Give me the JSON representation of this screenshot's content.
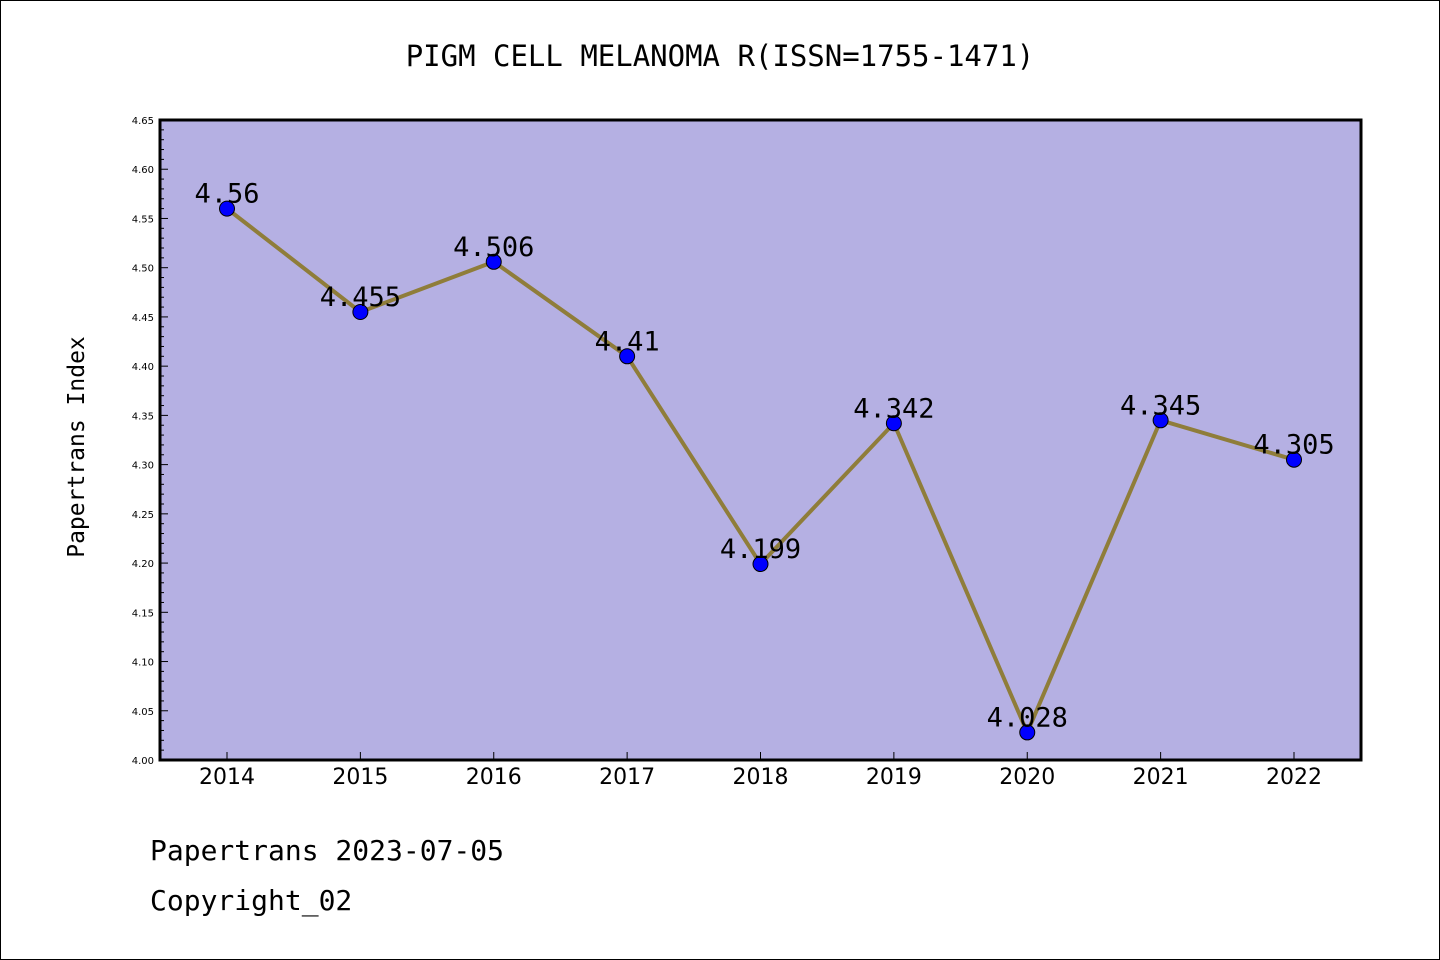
{
  "chart_data": {
    "type": "line",
    "title": "PIGM CELL MELANOMA R(ISSN=1755-1471)",
    "ylabel": "Papertrans Index",
    "xlabel": "",
    "categories": [
      "2014",
      "2015",
      "2016",
      "2017",
      "2018",
      "2019",
      "2020",
      "2021",
      "2022"
    ],
    "series": [
      {
        "values": [
          4.56,
          4.455,
          4.506,
          4.41,
          4.199,
          4.342,
          4.028,
          4.345,
          4.305
        ],
        "labels": [
          "4.56",
          "4.455",
          "4.506",
          "4.41",
          "4.199",
          "4.342",
          "4.028",
          "4.345",
          "4.305"
        ]
      }
    ],
    "ylim": [
      4.0,
      4.65
    ],
    "yticks": [
      "4.00",
      "4.05",
      "4.10",
      "4.15",
      "4.20",
      "4.25",
      "4.30",
      "4.35",
      "4.40",
      "4.45",
      "4.50",
      "4.55",
      "4.60",
      "4.65"
    ],
    "grid": false,
    "legend": "none",
    "colors": {
      "plot_bg": "#b5b0e3",
      "line": "#8f7d3a",
      "marker": "#0000ff"
    }
  },
  "footer": {
    "line1": "Papertrans 2023-07-05",
    "line2": "Copyright_02"
  }
}
